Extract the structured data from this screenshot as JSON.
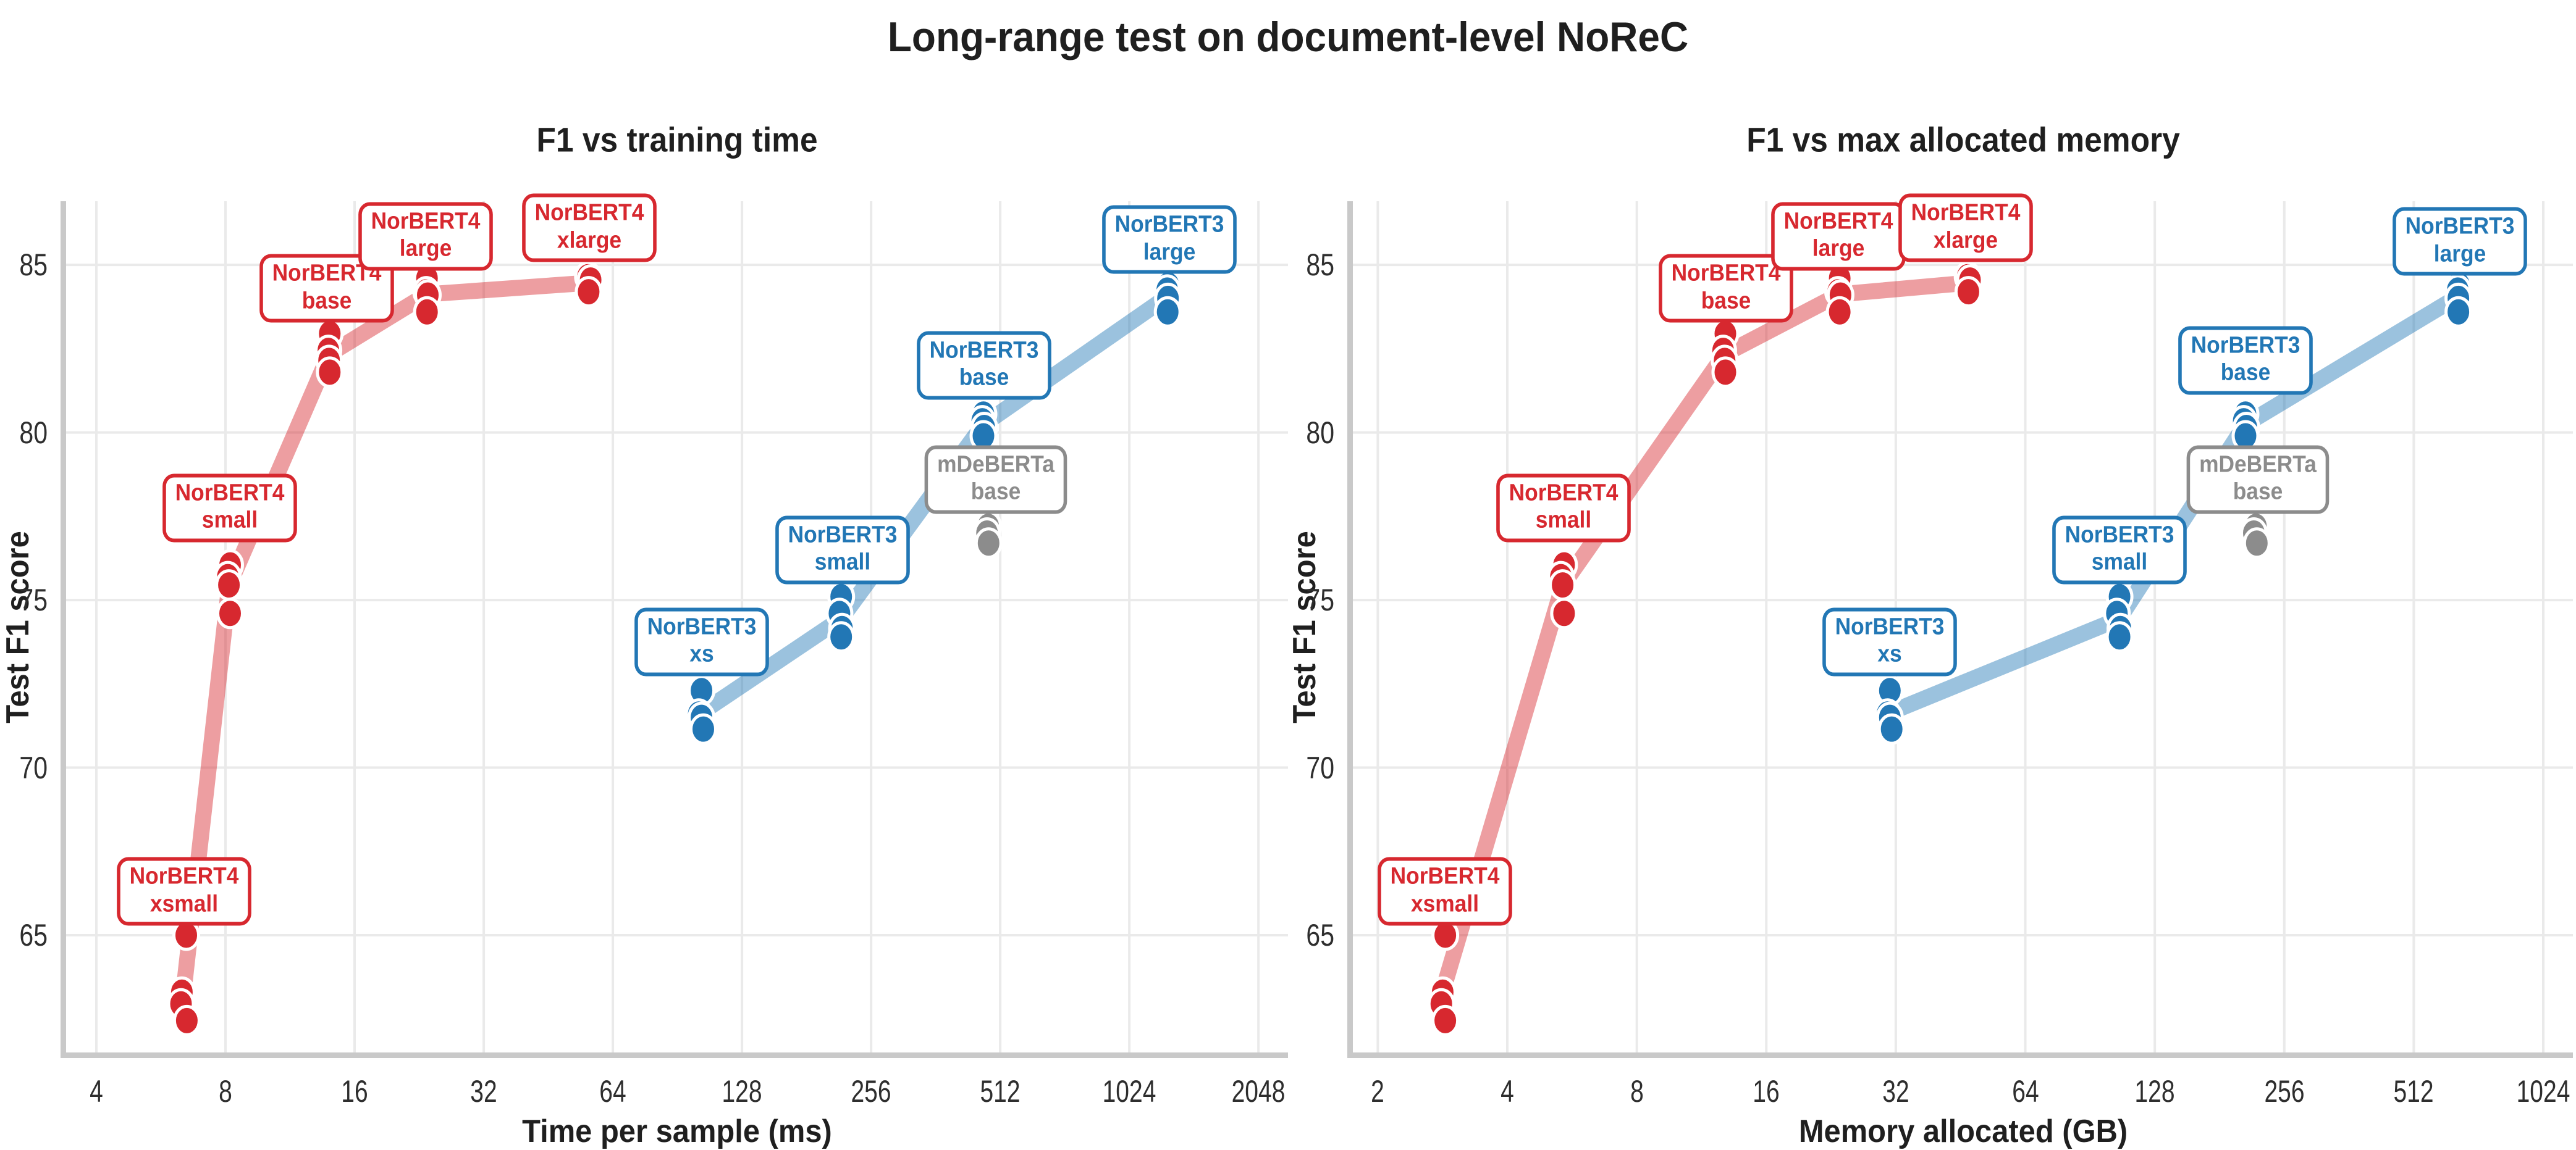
{
  "figure": {
    "title": "Long-range test on document-level NoReC",
    "colors": {
      "norbert4": "#d7282f",
      "norbert3": "#2277b5",
      "mdeberta": "#8c8c8c",
      "grid": "#eaeaea",
      "spine": "#c9c9c9",
      "title_text": "#1f1f1f",
      "tick_text": "#2e2e2e"
    }
  },
  "chart_data": [
    {
      "id": "time",
      "type": "scatter",
      "title": "F1 vs training time",
      "xlabel": "Time per sample (ms)",
      "ylabel": "Test F1 score",
      "x_scale": "log2",
      "grid": true,
      "legend": "none",
      "x_ticks": [
        4,
        8,
        16,
        32,
        64,
        128,
        256,
        512,
        1024,
        2048
      ],
      "y_ticks": [
        65,
        70,
        75,
        80,
        85
      ],
      "xlim": [
        3.4,
        2400
      ],
      "ylim": [
        61.5,
        86.9
      ],
      "series": [
        {
          "name": "NorBERT4",
          "color": "#d7282f",
          "trend_line": true,
          "groups": [
            {
              "size": "xsmall",
              "label": [
                "NorBERT4",
                "xsmall"
              ],
              "label_x": 6.4,
              "label_y": 66.3,
              "points": [
                [
                  6.48,
                  65.0
                ],
                [
                  6.33,
                  63.3
                ],
                [
                  6.3,
                  62.95
                ],
                [
                  6.5,
                  62.45
                ]
              ]
            },
            {
              "size": "small",
              "label": [
                "NorBERT4",
                "small"
              ],
              "label_x": 8.2,
              "label_y": 77.75,
              "points": [
                [
                  8.2,
                  76.05
                ],
                [
                  8.1,
                  75.7
                ],
                [
                  8.15,
                  75.45
                ],
                [
                  8.2,
                  74.6
                ]
              ]
            },
            {
              "size": "base",
              "label": [
                "NorBERT4",
                "base"
              ],
              "label_x": 13.8,
              "label_y": 84.3,
              "points": [
                [
                  14.0,
                  82.95
                ],
                [
                  13.9,
                  82.45
                ],
                [
                  13.95,
                  82.15
                ],
                [
                  14.0,
                  81.8
                ]
              ]
            },
            {
              "size": "large",
              "label": [
                "NorBERT4",
                "large"
              ],
              "label_x": 23.4,
              "label_y": 85.85,
              "points": [
                [
                  23.6,
                  84.6
                ],
                [
                  23.5,
                  84.2
                ],
                [
                  23.7,
                  84.1
                ],
                [
                  23.6,
                  83.6
                ]
              ]
            },
            {
              "size": "xlarge",
              "label": [
                "NorBERT4",
                "xlarge"
              ],
              "label_x": 56.5,
              "label_y": 86.1,
              "points": [
                [
                  56.0,
                  84.65
                ],
                [
                  56.8,
                  84.55
                ],
                [
                  56.2,
                  84.2
                ]
              ]
            }
          ]
        },
        {
          "name": "NorBERT3",
          "color": "#2277b5",
          "trend_line": true,
          "groups": [
            {
              "size": "xs",
              "label": [
                "NorBERT3",
                "xs"
              ],
              "label_x": 103,
              "label_y": 73.75,
              "points": [
                [
                  103,
                  72.3
                ],
                [
                  101.5,
                  71.6
                ],
                [
                  103,
                  71.5
                ],
                [
                  104,
                  71.15
                ]
              ]
            },
            {
              "size": "small",
              "label": [
                "NorBERT3",
                "small"
              ],
              "label_x": 220,
              "label_y": 76.5,
              "points": [
                [
                  218,
                  75.1
                ],
                [
                  216,
                  74.6
                ],
                [
                  219,
                  74.15
                ],
                [
                  218,
                  73.9
                ]
              ]
            },
            {
              "size": "base",
              "label": [
                "NorBERT3",
                "base"
              ],
              "label_x": 469,
              "label_y": 82.0,
              "points": [
                [
                  468,
                  80.55
                ],
                [
                  465,
                  80.35
                ],
                [
                  470,
                  80.15
                ],
                [
                  468,
                  79.9
                ]
              ]
            },
            {
              "size": "large",
              "label": [
                "NorBERT3",
                "large"
              ],
              "label_x": 1270,
              "label_y": 85.75,
              "points": [
                [
                  1262,
                  84.4
                ],
                [
                  1255,
                  84.25
                ],
                [
                  1260,
                  84.0
                ],
                [
                  1258,
                  83.6
                ]
              ]
            }
          ]
        },
        {
          "name": "mDeBERTa",
          "color": "#8c8c8c",
          "trend_line": false,
          "groups": [
            {
              "size": "base",
              "label": [
                "mDeBERTa",
                "base"
              ],
              "label_x": 500,
              "label_y": 78.6,
              "points": [
                [
                  480,
                  77.2
                ],
                [
                  477,
                  77.0
                ],
                [
                  481,
                  76.7
                ]
              ]
            }
          ]
        }
      ]
    },
    {
      "id": "memory",
      "type": "scatter",
      "title": "F1 vs max allocated memory",
      "xlabel": "Memory allocated (GB)",
      "ylabel": "Test F1 score",
      "x_scale": "log2",
      "grid": true,
      "legend": "none",
      "x_ticks": [
        2,
        4,
        8,
        16,
        32,
        64,
        128,
        256,
        512,
        1024
      ],
      "y_ticks": [
        65,
        70,
        75,
        80,
        85
      ],
      "xlim": [
        1.75,
        1200
      ],
      "ylim": [
        61.5,
        86.9
      ],
      "series": [
        {
          "name": "NorBERT4",
          "color": "#d7282f",
          "trend_line": true,
          "groups": [
            {
              "size": "xsmall",
              "label": [
                "NorBERT4",
                "xsmall"
              ],
              "label_x": 2.86,
              "label_y": 66.3,
              "points": [
                [
                  2.87,
                  65.0
                ],
                [
                  2.83,
                  63.3
                ],
                [
                  2.81,
                  62.95
                ],
                [
                  2.87,
                  62.45
                ]
              ]
            },
            {
              "size": "small",
              "label": [
                "NorBERT4",
                "small"
              ],
              "label_x": 5.4,
              "label_y": 77.75,
              "points": [
                [
                  5.42,
                  76.05
                ],
                [
                  5.33,
                  75.7
                ],
                [
                  5.38,
                  75.45
                ],
                [
                  5.42,
                  74.6
                ]
              ]
            },
            {
              "size": "base",
              "label": [
                "NorBERT4",
                "base"
              ],
              "label_x": 12.9,
              "label_y": 84.3,
              "points": [
                [
                  12.85,
                  82.95
                ],
                [
                  12.7,
                  82.45
                ],
                [
                  12.8,
                  82.15
                ],
                [
                  12.85,
                  81.8
                ]
              ]
            },
            {
              "size": "large",
              "label": [
                "NorBERT4",
                "large"
              ],
              "label_x": 23.5,
              "label_y": 85.85,
              "points": [
                [
                  23.7,
                  84.6
                ],
                [
                  23.5,
                  84.2
                ],
                [
                  23.8,
                  84.1
                ],
                [
                  23.7,
                  83.6
                ]
              ]
            },
            {
              "size": "xlarge",
              "label": [
                "NorBERT4",
                "xlarge"
              ],
              "label_x": 46.5,
              "label_y": 86.1,
              "points": [
                [
                  47.0,
                  84.65
                ],
                [
                  47.6,
                  84.55
                ],
                [
                  47.2,
                  84.2
                ]
              ]
            }
          ]
        },
        {
          "name": "NorBERT3",
          "color": "#2277b5",
          "trend_line": true,
          "groups": [
            {
              "size": "xs",
              "label": [
                "NorBERT3",
                "xs"
              ],
              "label_x": 31,
              "label_y": 73.75,
              "points": [
                [
                  31,
                  72.3
                ],
                [
                  30.6,
                  71.6
                ],
                [
                  31,
                  71.5
                ],
                [
                  31.3,
                  71.15
                ]
              ]
            },
            {
              "size": "small",
              "label": [
                "NorBERT3",
                "small"
              ],
              "label_x": 106,
              "label_y": 76.5,
              "points": [
                [
                  106,
                  75.1
                ],
                [
                  104.5,
                  74.6
                ],
                [
                  106.5,
                  74.15
                ],
                [
                  106,
                  73.9
                ]
              ]
            },
            {
              "size": "base",
              "label": [
                "NorBERT3",
                "base"
              ],
              "label_x": 208,
              "label_y": 82.15,
              "points": [
                [
                  208,
                  80.55
                ],
                [
                  206,
                  80.35
                ],
                [
                  209,
                  80.15
                ],
                [
                  208,
                  79.9
                ]
              ]
            },
            {
              "size": "large",
              "label": [
                "NorBERT3",
                "large"
              ],
              "label_x": 655,
              "label_y": 85.7,
              "points": [
                [
                  652,
                  84.4
                ],
                [
                  648,
                  84.25
                ],
                [
                  650,
                  84.0
                ],
                [
                  650,
                  83.6
                ]
              ]
            }
          ]
        },
        {
          "name": "mDeBERTa",
          "color": "#8c8c8c",
          "trend_line": false,
          "groups": [
            {
              "size": "base",
              "label": [
                "mDeBERTa",
                "base"
              ],
              "label_x": 222,
              "label_y": 78.6,
              "points": [
                [
                  220,
                  77.2
                ],
                [
                  217.5,
                  77.0
                ],
                [
                  221,
                  76.7
                ]
              ]
            }
          ]
        }
      ]
    }
  ],
  "layout_note_values": {
    "left_plot_title": "F1 vs training time",
    "right_plot_title": "F1 vs max allocated memory"
  }
}
